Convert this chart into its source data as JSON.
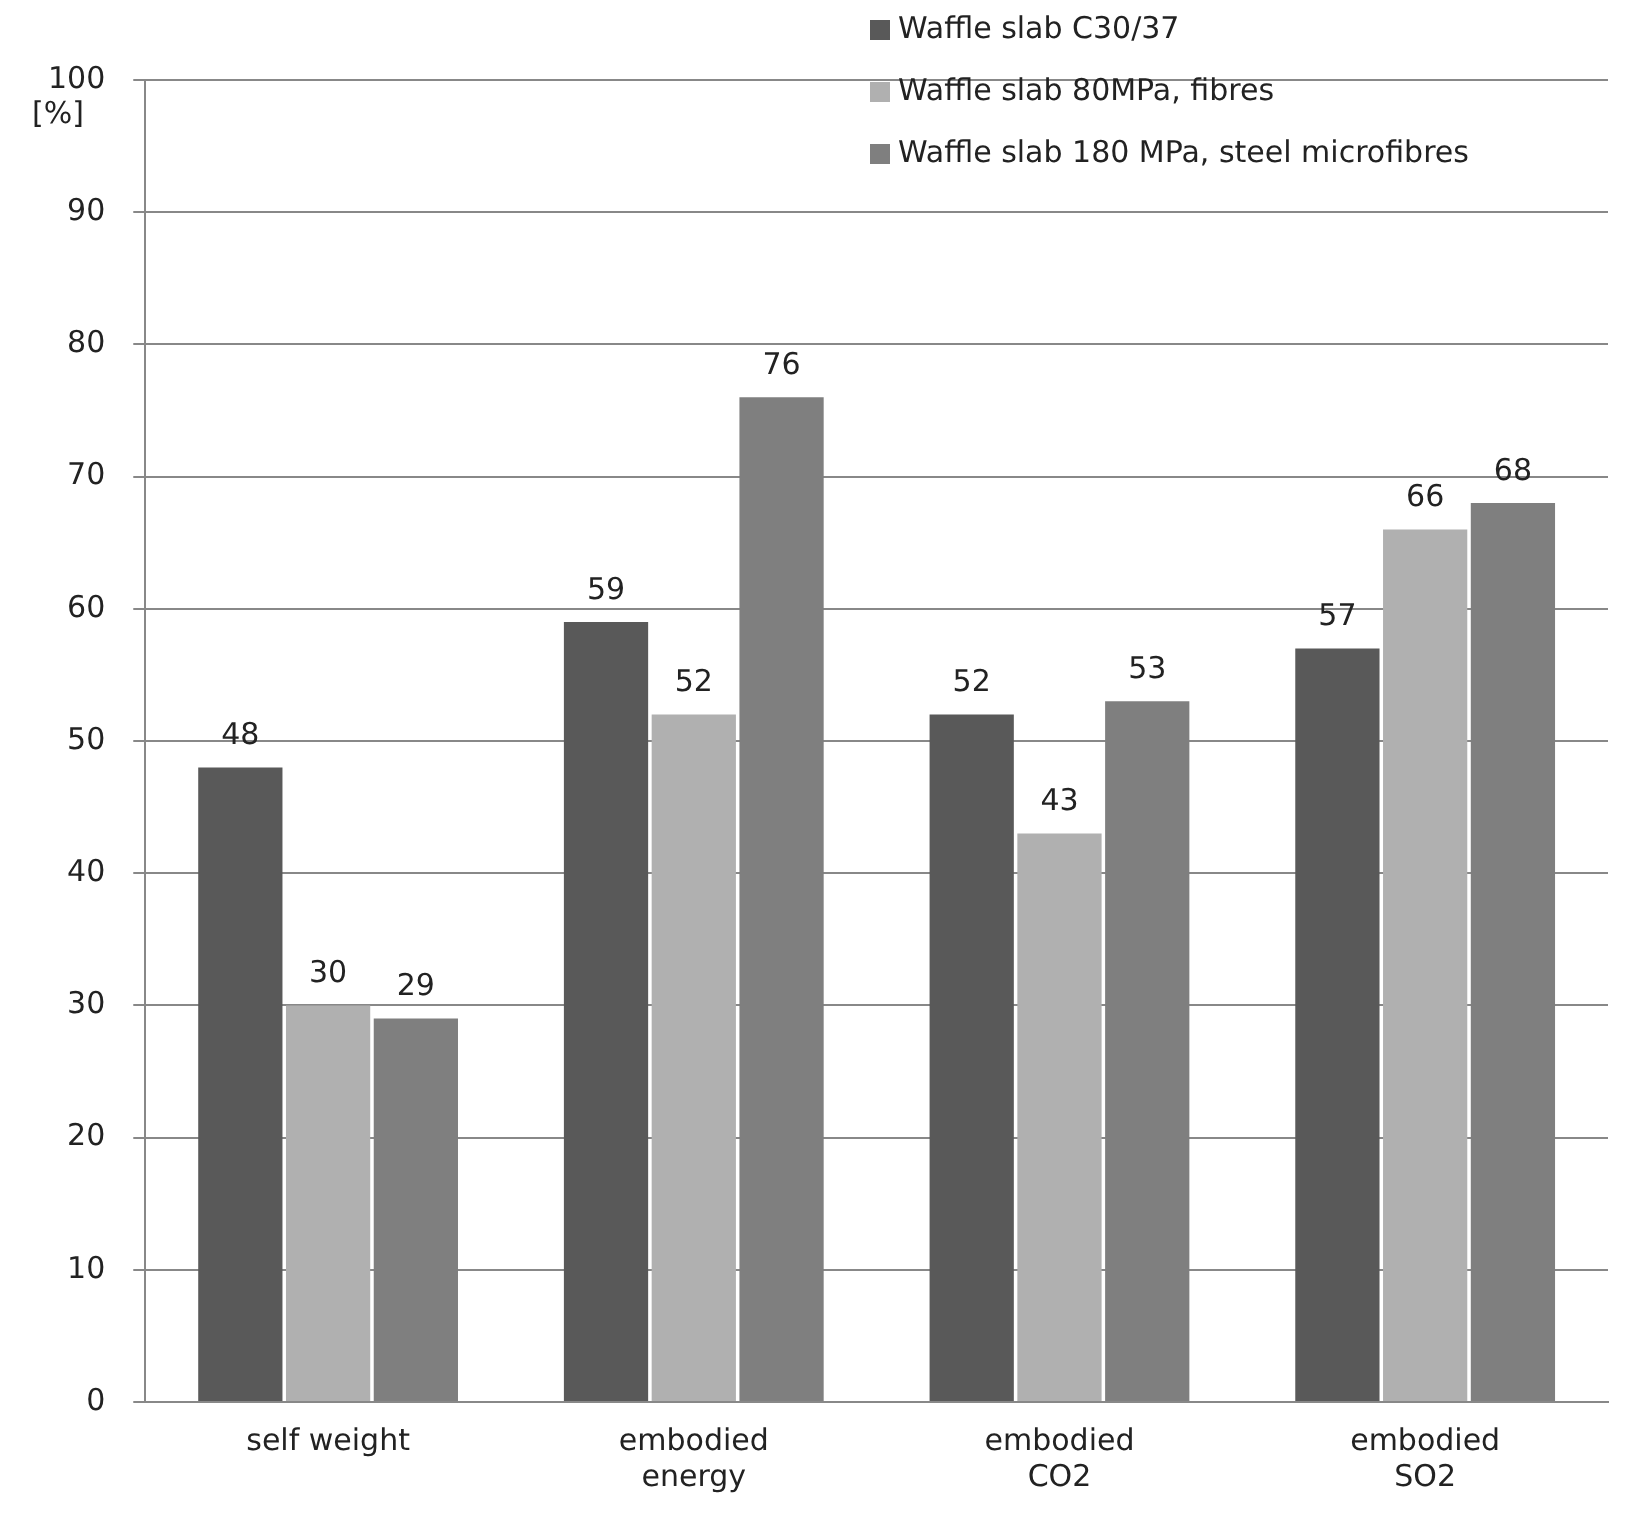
{
  "chart_data": {
    "type": "bar",
    "ylabel": "[%]",
    "categories": [
      "self weight",
      "embodied energy",
      "embodied CO2",
      "embodied SO2"
    ],
    "series": [
      {
        "name": "Waffle slab C30/37",
        "color": "#595959",
        "values": [
          48,
          59,
          52,
          57
        ]
      },
      {
        "name": "Waffle slab 80MPa, fibres",
        "color": "#b0b0b0",
        "values": [
          30,
          52,
          43,
          66
        ]
      },
      {
        "name": "Waffle slab 180 MPa, steel microfibres",
        "color": "#7f7f7f",
        "values": [
          29,
          76,
          53,
          68
        ]
      }
    ],
    "ylim": [
      0,
      100
    ],
    "yticks": [
      0,
      10,
      20,
      30,
      40,
      50,
      60,
      70,
      80,
      90,
      100
    ],
    "grid": "y",
    "legend": "top right",
    "data_labels": true
  }
}
